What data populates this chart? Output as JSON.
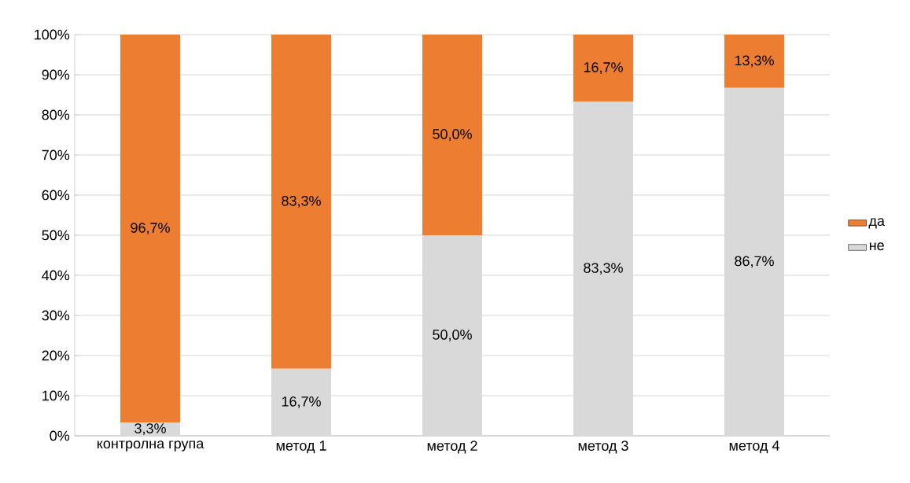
{
  "chart_data": {
    "type": "bar",
    "stacked": true,
    "categories": [
      "контролна група",
      "метод 1",
      "метод 2",
      "метод 3",
      "метод 4"
    ],
    "series": [
      {
        "name": "не",
        "color": "#d9d9d9",
        "values": [
          3.3,
          16.7,
          50.0,
          83.3,
          86.7
        ],
        "value_labels": [
          "3,3%",
          "16,7%",
          "50,0%",
          "83,3%",
          "86,7%"
        ]
      },
      {
        "name": "да",
        "color": "#ed7d31",
        "values": [
          96.7,
          83.3,
          50.0,
          16.7,
          13.3
        ],
        "value_labels": [
          "96,7%",
          "83,3%",
          "50,0%",
          "16,7%",
          "13,3%"
        ]
      }
    ],
    "ylim": [
      0,
      100
    ],
    "yticks": [
      {
        "value": 0,
        "label": "0%"
      },
      {
        "value": 10,
        "label": "10%"
      },
      {
        "value": 20,
        "label": "20%"
      },
      {
        "value": 30,
        "label": "30%"
      },
      {
        "value": 40,
        "label": "40%"
      },
      {
        "value": 50,
        "label": "50%"
      },
      {
        "value": 60,
        "label": "60%"
      },
      {
        "value": 70,
        "label": "70%"
      },
      {
        "value": 80,
        "label": "80%"
      },
      {
        "value": 90,
        "label": "90%"
      },
      {
        "value": 100,
        "label": "100%"
      }
    ],
    "grid": "y",
    "legend": "right"
  }
}
